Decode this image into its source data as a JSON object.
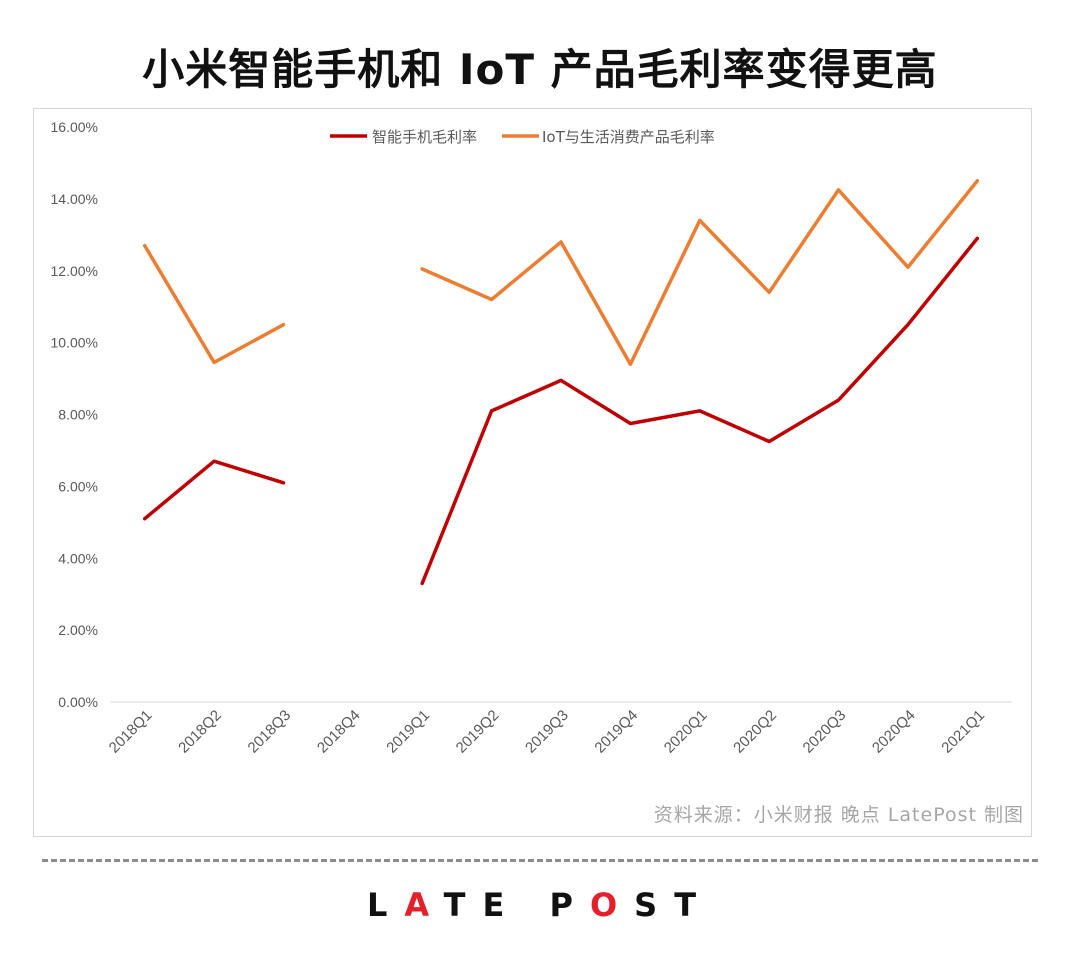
{
  "title": "小米智能手机和 IoT 产品毛利率变得更高",
  "source": "资料来源：小米财报 晚点 LatePost 制图",
  "logo": {
    "text": "LATE POST"
  },
  "colors": {
    "smartphone": "#c00000",
    "iot": "#ed7d31",
    "axis": "#d9d9d9",
    "text": "#595959"
  },
  "chart_data": {
    "type": "line",
    "categories": [
      "2018Q1",
      "2018Q2",
      "2018Q3",
      "2018Q4",
      "2019Q1",
      "2019Q2",
      "2019Q3",
      "2019Q4",
      "2020Q1",
      "2020Q2",
      "2020Q3",
      "2020Q4",
      "2021Q1"
    ],
    "series": [
      {
        "name": "智能手机毛利率",
        "color": "#c00000",
        "values": [
          5.1,
          6.7,
          6.1,
          null,
          3.3,
          8.1,
          8.95,
          7.75,
          8.1,
          7.25,
          8.4,
          10.5,
          12.9
        ]
      },
      {
        "name": "IoT与生活消费产品毛利率",
        "color": "#ed7d31",
        "values": [
          12.7,
          9.45,
          10.5,
          null,
          12.05,
          11.2,
          12.8,
          9.4,
          13.4,
          11.4,
          14.25,
          12.1,
          14.5
        ]
      }
    ],
    "ylim": [
      0,
      16
    ],
    "yticks": [
      "0.00%",
      "2.00%",
      "4.00%",
      "6.00%",
      "8.00%",
      "10.00%",
      "12.00%",
      "14.00%",
      "16.00%"
    ],
    "xlabel": "",
    "ylabel": "",
    "legend": "top",
    "grid": false
  }
}
